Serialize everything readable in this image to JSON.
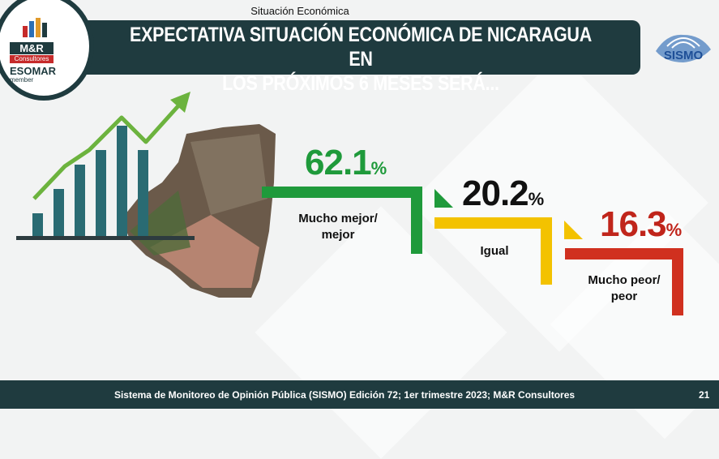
{
  "header": {
    "section": "Situación Económica",
    "title_line1": "EXPECTATIVA SITUACIÓN ECONÓMICA DE NICARAGUA EN",
    "title_line2": "LOS PRÓXIMOS 6 MESES SERÁ..."
  },
  "logo": {
    "brand": "M&R",
    "sub": "Consultores",
    "esomar": "ESOMAR",
    "member": "member"
  },
  "sismo_logo": {
    "text": "SISMO"
  },
  "chart_data": {
    "type": "bar",
    "categories": [
      "Mucho mejor/ mejor",
      "Igual",
      "Mucho peor/ peor"
    ],
    "values": [
      62.1,
      20.2,
      16.3
    ],
    "value_labels": [
      "62.1",
      "20.2",
      "16.3"
    ],
    "percent_sign": "%",
    "colors": [
      "#1f9a3b",
      "#f3c200",
      "#d0301f"
    ]
  },
  "labels": {
    "cat1_line1": "Mucho mejor/",
    "cat1_line2": "mejor",
    "cat2_line1": "Igual",
    "cat3_line1": "Mucho peor/",
    "cat3_line2": "peor"
  },
  "footer": {
    "text": "Sistema de Monitoreo de Opinión Pública (SISMO) Edición 72; 1er trimestre 2023; M&R Consultores",
    "page": "21"
  }
}
